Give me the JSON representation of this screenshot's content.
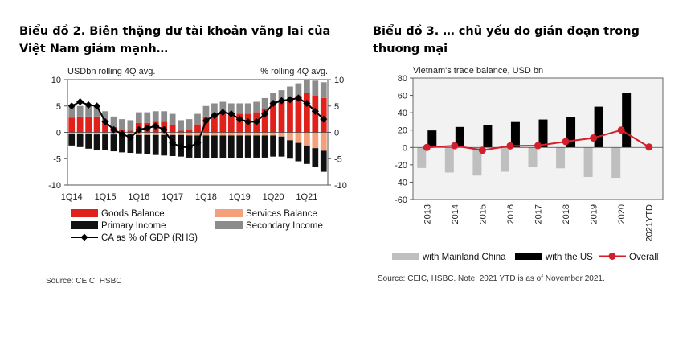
{
  "panel1": {
    "title": "Biểu đồ 2. Biên thặng dư tài khoản vãng lai của Việt Nam giảm mạnh…",
    "source": "Source: CEIC, HSBC"
  },
  "panel2": {
    "title": "Biểu đồ 3. … chủ yếu do gián đoạn trong thương mại",
    "source": "Source: CEIC, HSBC. Note: 2021 YTD is as of November 2021."
  },
  "chart_data": [
    {
      "type": "bar",
      "title": "",
      "left_unit_label": "USDbn rolling 4Q avg.",
      "right_unit_label": "% rolling 4Q avg.",
      "ylim": [
        -10,
        10
      ],
      "y_ticks": [
        -10,
        -5,
        0,
        5,
        10
      ],
      "y2lim": [
        -10,
        10
      ],
      "y2_ticks": [
        -10,
        -5,
        0,
        5,
        10
      ],
      "categories": [
        "1Q14",
        "2Q14",
        "3Q14",
        "4Q14",
        "1Q15",
        "2Q15",
        "3Q15",
        "4Q15",
        "1Q16",
        "2Q16",
        "3Q16",
        "4Q16",
        "1Q17",
        "2Q17",
        "3Q17",
        "4Q17",
        "1Q18",
        "2Q18",
        "3Q18",
        "4Q18",
        "1Q19",
        "2Q19",
        "3Q19",
        "4Q19",
        "1Q20",
        "2Q20",
        "3Q20",
        "4Q20",
        "1Q21",
        "2Q21",
        "3Q21"
      ],
      "x_tick_labels": [
        "1Q14",
        "1Q15",
        "1Q16",
        "1Q17",
        "1Q18",
        "1Q19",
        "1Q20",
        "1Q21"
      ],
      "stacked": true,
      "series": [
        {
          "name": "Goods Balance",
          "kind": "bar",
          "color": "#e0201b",
          "values": [
            2.8,
            3.0,
            3.0,
            3.0,
            2.0,
            1.0,
            0.5,
            0.3,
            1.8,
            1.8,
            2.0,
            2.0,
            1.5,
            0.3,
            0.5,
            1.5,
            3.0,
            3.5,
            3.8,
            3.5,
            3.5,
            3.5,
            3.8,
            4.5,
            5.5,
            6.0,
            6.5,
            7.0,
            7.5,
            7.0,
            6.5
          ]
        },
        {
          "name": "Services Balance",
          "kind": "bar",
          "color": "#f4a07a",
          "values": [
            -0.3,
            -0.3,
            -0.3,
            -0.4,
            -0.4,
            -0.4,
            -0.4,
            -0.4,
            -0.5,
            -0.5,
            -0.5,
            -0.5,
            -0.5,
            -0.5,
            -0.6,
            -0.6,
            -0.6,
            -0.6,
            -0.6,
            -0.6,
            -0.6,
            -0.6,
            -0.6,
            -0.6,
            -0.6,
            -0.8,
            -1.5,
            -2.0,
            -2.5,
            -3.0,
            -3.5
          ]
        },
        {
          "name": "Primary Income",
          "kind": "bar",
          "color": "#111111",
          "values": [
            -2.2,
            -2.5,
            -2.8,
            -3.0,
            -3.0,
            -3.2,
            -3.4,
            -3.5,
            -3.5,
            -3.6,
            -3.8,
            -3.9,
            -4.0,
            -4.1,
            -4.2,
            -4.3,
            -4.3,
            -4.3,
            -4.3,
            -4.3,
            -4.3,
            -4.2,
            -4.2,
            -4.2,
            -4.0,
            -3.8,
            -3.5,
            -3.5,
            -3.5,
            -3.5,
            -4.0
          ]
        },
        {
          "name": "Secondary Income",
          "kind": "bar",
          "color": "#8c8c8c",
          "values": [
            2.0,
            2.0,
            2.0,
            2.0,
            2.0,
            2.0,
            2.0,
            2.0,
            2.0,
            2.0,
            2.0,
            2.0,
            2.0,
            2.0,
            2.0,
            2.0,
            2.0,
            2.0,
            2.0,
            2.0,
            2.0,
            2.0,
            2.0,
            2.0,
            2.0,
            2.0,
            2.2,
            2.3,
            2.5,
            2.8,
            3.0
          ]
        },
        {
          "name": "CA as % of GDP (RHS)",
          "kind": "line",
          "axis": "right",
          "color": "#000000",
          "values": [
            5.0,
            5.8,
            5.2,
            5.0,
            2.0,
            0.5,
            -0.3,
            -1.0,
            0.5,
            0.8,
            1.2,
            0.5,
            -2.0,
            -2.8,
            -2.8,
            -2.0,
            2.2,
            3.2,
            3.8,
            3.5,
            2.5,
            2.0,
            2.0,
            3.5,
            5.5,
            6.0,
            6.2,
            6.5,
            5.5,
            4.0,
            2.5
          ]
        }
      ],
      "legend": {
        "placement": "bottom"
      },
      "grid": false
    },
    {
      "type": "bar",
      "title": "",
      "unit_label": "Vietnam's trade balance, USD bn",
      "ylim": [
        -60,
        80
      ],
      "y_ticks": [
        -60,
        -40,
        -20,
        0,
        20,
        40,
        60,
        80
      ],
      "categories": [
        "2013",
        "2014",
        "2015",
        "2016",
        "2017",
        "2018",
        "2019",
        "2020",
        "2021YTD"
      ],
      "series": [
        {
          "name": "with Mainland China",
          "kind": "bar",
          "color": "#bfbfbf",
          "values": [
            -23.7,
            -28.9,
            -32.4,
            -28.0,
            -22.8,
            -24.1,
            -34.0,
            -35.0,
            null
          ]
        },
        {
          "name": "with the US",
          "kind": "bar",
          "color": "#000000",
          "values": [
            19.6,
            23.6,
            26.1,
            29.3,
            32.2,
            34.8,
            47.0,
            62.7,
            null
          ]
        },
        {
          "name": "Overall",
          "kind": "line",
          "color": "#d21f2b",
          "values": [
            0.0,
            2.0,
            -3.2,
            1.8,
            2.1,
            6.8,
            10.9,
            20.0,
            0.5
          ]
        }
      ],
      "legend": {
        "placement": "bottom"
      },
      "grid": false,
      "plot_background": "#f2f2f2"
    }
  ]
}
